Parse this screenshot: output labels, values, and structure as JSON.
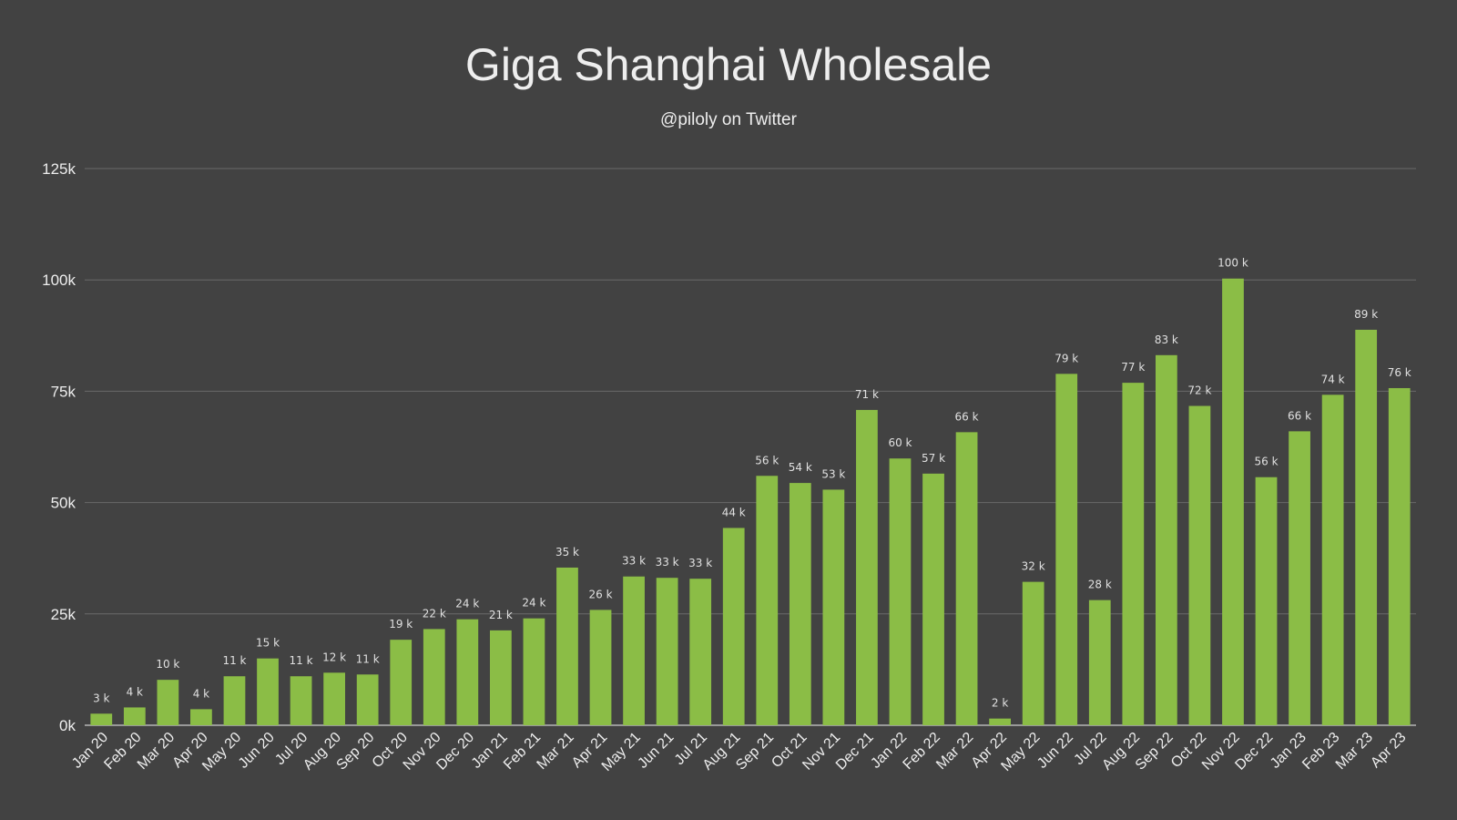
{
  "title": "Giga Shanghai Wholesale",
  "subtitle": "@piloly on Twitter",
  "colors": {
    "background": "#424242",
    "bar": "#8bbd46",
    "grid": "#6a6a6a",
    "text": "#eeeeee"
  },
  "chart_data": {
    "type": "bar",
    "categories": [
      "Jan 20",
      "Feb 20",
      "Mar 20",
      "Apr 20",
      "May 20",
      "Jun 20",
      "Jul 20",
      "Aug 20",
      "Sep 20",
      "Oct 20",
      "Nov 20",
      "Dec 20",
      "Jan 21",
      "Feb 21",
      "Mar 21",
      "Apr 21",
      "May 21",
      "Jun 21",
      "Jul 21",
      "Aug 21",
      "Sep 21",
      "Oct 21",
      "Nov 21",
      "Dec 21",
      "Jan 22",
      "Feb 22",
      "Mar 22",
      "Apr 22",
      "May 22",
      "Jun 22",
      "Jul 22",
      "Aug 22",
      "Sep 22",
      "Oct 22",
      "Nov 22",
      "Dec 22",
      "Jan 23",
      "Feb 23",
      "Mar 23",
      "Apr 23"
    ],
    "values": [
      2600,
      4000,
      10200,
      3600,
      11000,
      15000,
      11000,
      11800,
      11400,
      19200,
      21600,
      23800,
      21300,
      24000,
      35400,
      25900,
      33400,
      33100,
      32900,
      44300,
      56000,
      54400,
      52900,
      70800,
      59900,
      56500,
      65800,
      1500,
      32200,
      78900,
      28100,
      76900,
      83100,
      71700,
      100300,
      55700,
      66000,
      74200,
      88800,
      75700
    ],
    "data_labels": [
      "3 k",
      "4 k",
      "10 k",
      "4 k",
      "11 k",
      "15 k",
      "11 k",
      "12 k",
      "11 k",
      "19 k",
      "22 k",
      "24 k",
      "21 k",
      "24 k",
      "35 k",
      "26 k",
      "33 k",
      "33 k",
      "33 k",
      "44 k",
      "56 k",
      "54 k",
      "53 k",
      "71 k",
      "60 k",
      "57 k",
      "66 k",
      "2 k",
      "32 k",
      "79 k",
      "28 k",
      "77 k",
      "83 k",
      "72 k",
      "100 k",
      "56 k",
      "66 k",
      "74 k",
      "89 k",
      "76 k"
    ],
    "yticks": [
      0,
      25000,
      50000,
      75000,
      100000,
      125000
    ],
    "ytick_labels": [
      "0k",
      "25k",
      "50k",
      "75k",
      "100k",
      "125k"
    ],
    "ylim": [
      0,
      125000
    ],
    "grid": true,
    "legend": "none"
  }
}
